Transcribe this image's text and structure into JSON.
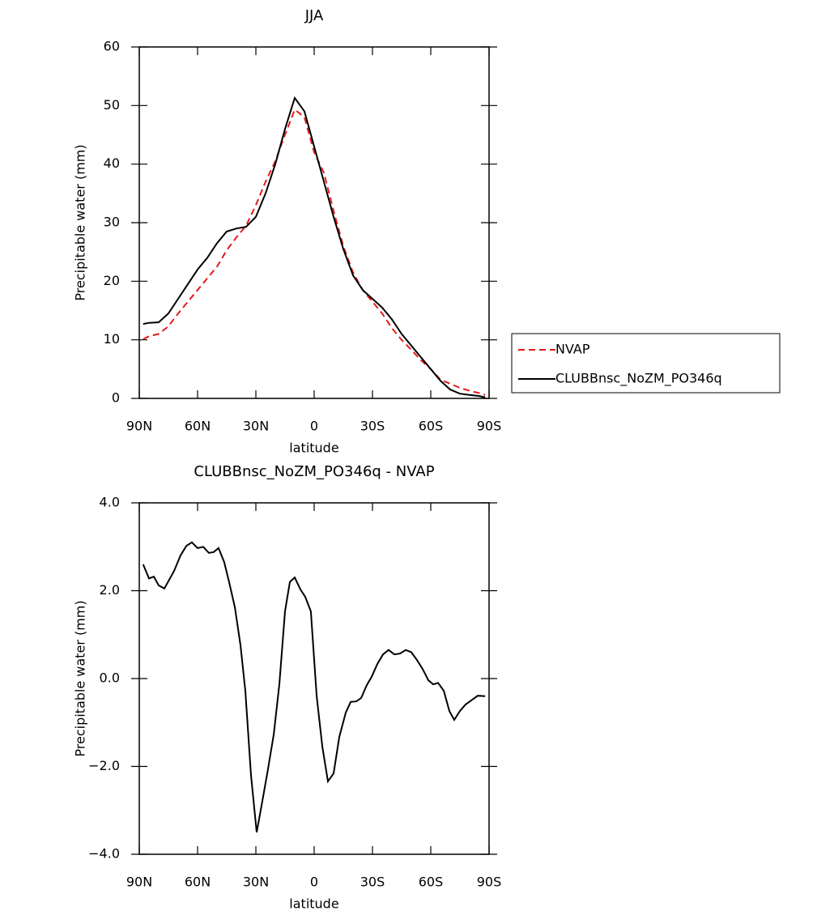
{
  "chart_data": [
    {
      "type": "line",
      "title": "JJA",
      "xlabel": "latitude",
      "ylabel": "Precipitable water (mm)",
      "x": [
        88,
        85,
        80,
        75,
        70,
        65,
        60,
        55,
        50,
        45,
        40,
        35,
        30,
        25,
        20,
        15,
        10,
        5,
        0,
        -5,
        -10,
        -15,
        -20,
        -25,
        -30,
        -35,
        -40,
        -45,
        -50,
        -55,
        -60,
        -65,
        -70,
        -75,
        -80,
        -85,
        -88
      ],
      "series": [
        {
          "name": "NVAP",
          "color": "#e41a1c",
          "dash": true,
          "values": [
            10.1,
            10.6,
            11,
            12.3,
            14.5,
            16.5,
            18.5,
            20.5,
            22.5,
            25.3,
            27.5,
            29.5,
            33,
            37,
            40.5,
            45,
            49.3,
            48,
            42,
            38.5,
            32,
            26,
            21.5,
            18.5,
            16.5,
            14.5,
            12,
            10,
            8.3,
            6.5,
            5,
            3.2,
            2.5,
            1.8,
            1.3,
            0.9,
            0.6
          ]
        },
        {
          "name": "CLUBBnsc_NoZM_PO346q",
          "color": "#000000",
          "dash": false,
          "values": [
            12.7,
            12.9,
            13,
            14.5,
            17,
            19.5,
            22,
            24,
            26.5,
            28.5,
            29,
            29.3,
            31,
            35,
            40,
            46,
            51.3,
            49,
            43,
            37,
            31,
            25.5,
            21,
            18.5,
            17,
            15.5,
            13.5,
            11,
            9,
            7,
            5,
            3,
            1.5,
            0.8,
            0.6,
            0.4,
            0.2
          ]
        }
      ],
      "xlim": [
        90,
        -90
      ],
      "xticks": [
        {
          "value": 90,
          "label": "90N"
        },
        {
          "value": 60,
          "label": "60N"
        },
        {
          "value": 30,
          "label": "30N"
        },
        0,
        {
          "value": -30,
          "label": "30S"
        },
        {
          "value": -60,
          "label": "60S"
        },
        {
          "value": -90,
          "label": "90S"
        }
      ],
      "ylim": [
        0,
        60
      ],
      "yticks": [
        0,
        10,
        20,
        30,
        40,
        50,
        60
      ],
      "legend": "right"
    },
    {
      "type": "line",
      "title": "CLUBBnsc_NoZM_PO346q - NVAP",
      "xlabel": "latitude",
      "ylabel": "Precipitable water (mm)",
      "x": [
        88,
        85,
        82.5,
        80,
        77.1,
        72.1,
        68.8,
        65.8,
        62.9,
        60,
        57.1,
        54.2,
        51.7,
        49.2,
        46.3,
        43.8,
        40.8,
        37.9,
        35.4,
        32.5,
        29.6,
        26.7,
        23.8,
        20.8,
        17.9,
        15,
        12.5,
        10,
        7.1,
        4.6,
        1.7,
        -1.3,
        -4.2,
        -7.1,
        -10,
        -12.9,
        -16.3,
        -18.8,
        -21.7,
        -24.2,
        -27.1,
        -29.6,
        -32.5,
        -35.4,
        -38.3,
        -41.3,
        -44.2,
        -47.1,
        -50,
        -52.9,
        -55.8,
        -58.8,
        -61.3,
        -63.8,
        -66.7,
        -69.6,
        -72.1,
        -75,
        -77.9,
        -80.8,
        -84.2,
        -88
      ],
      "series": [
        {
          "color": "#000000",
          "dash": false,
          "values": [
            2.6,
            2.28,
            2.32,
            2.12,
            2.05,
            2.45,
            2.8,
            3.02,
            3.1,
            2.97,
            3.0,
            2.86,
            2.88,
            2.97,
            2.65,
            2.2,
            1.62,
            0.76,
            -0.28,
            -2.2,
            -3.5,
            -2.8,
            -2.07,
            -1.27,
            -0.13,
            1.53,
            2.2,
            2.3,
            2.03,
            1.86,
            1.53,
            -0.4,
            -1.55,
            -2.34,
            -2.16,
            -1.33,
            -0.77,
            -0.53,
            -0.52,
            -0.44,
            -0.15,
            0.04,
            0.33,
            0.55,
            0.65,
            0.55,
            0.57,
            0.65,
            0.6,
            0.42,
            0.22,
            -0.04,
            -0.13,
            -0.1,
            -0.28,
            -0.74,
            -0.94,
            -0.74,
            -0.59,
            -0.5,
            -0.39,
            -0.4
          ]
        }
      ],
      "xlim": [
        90,
        -90
      ],
      "xticks": [
        {
          "value": 90,
          "label": "90N"
        },
        {
          "value": 60,
          "label": "60N"
        },
        {
          "value": 30,
          "label": "30N"
        },
        0,
        {
          "value": -30,
          "label": "30S"
        },
        {
          "value": -60,
          "label": "60S"
        },
        {
          "value": -90,
          "label": "90S"
        }
      ],
      "ylim": [
        -4,
        4
      ],
      "yticks": [
        {
          "value": -4,
          "label": "−4.0"
        },
        {
          "value": -2,
          "label": "−2.0"
        },
        {
          "value": 0,
          "label": "0.0"
        },
        {
          "value": 2,
          "label": "2.0"
        },
        {
          "value": 4,
          "label": "4.0"
        }
      ]
    }
  ]
}
